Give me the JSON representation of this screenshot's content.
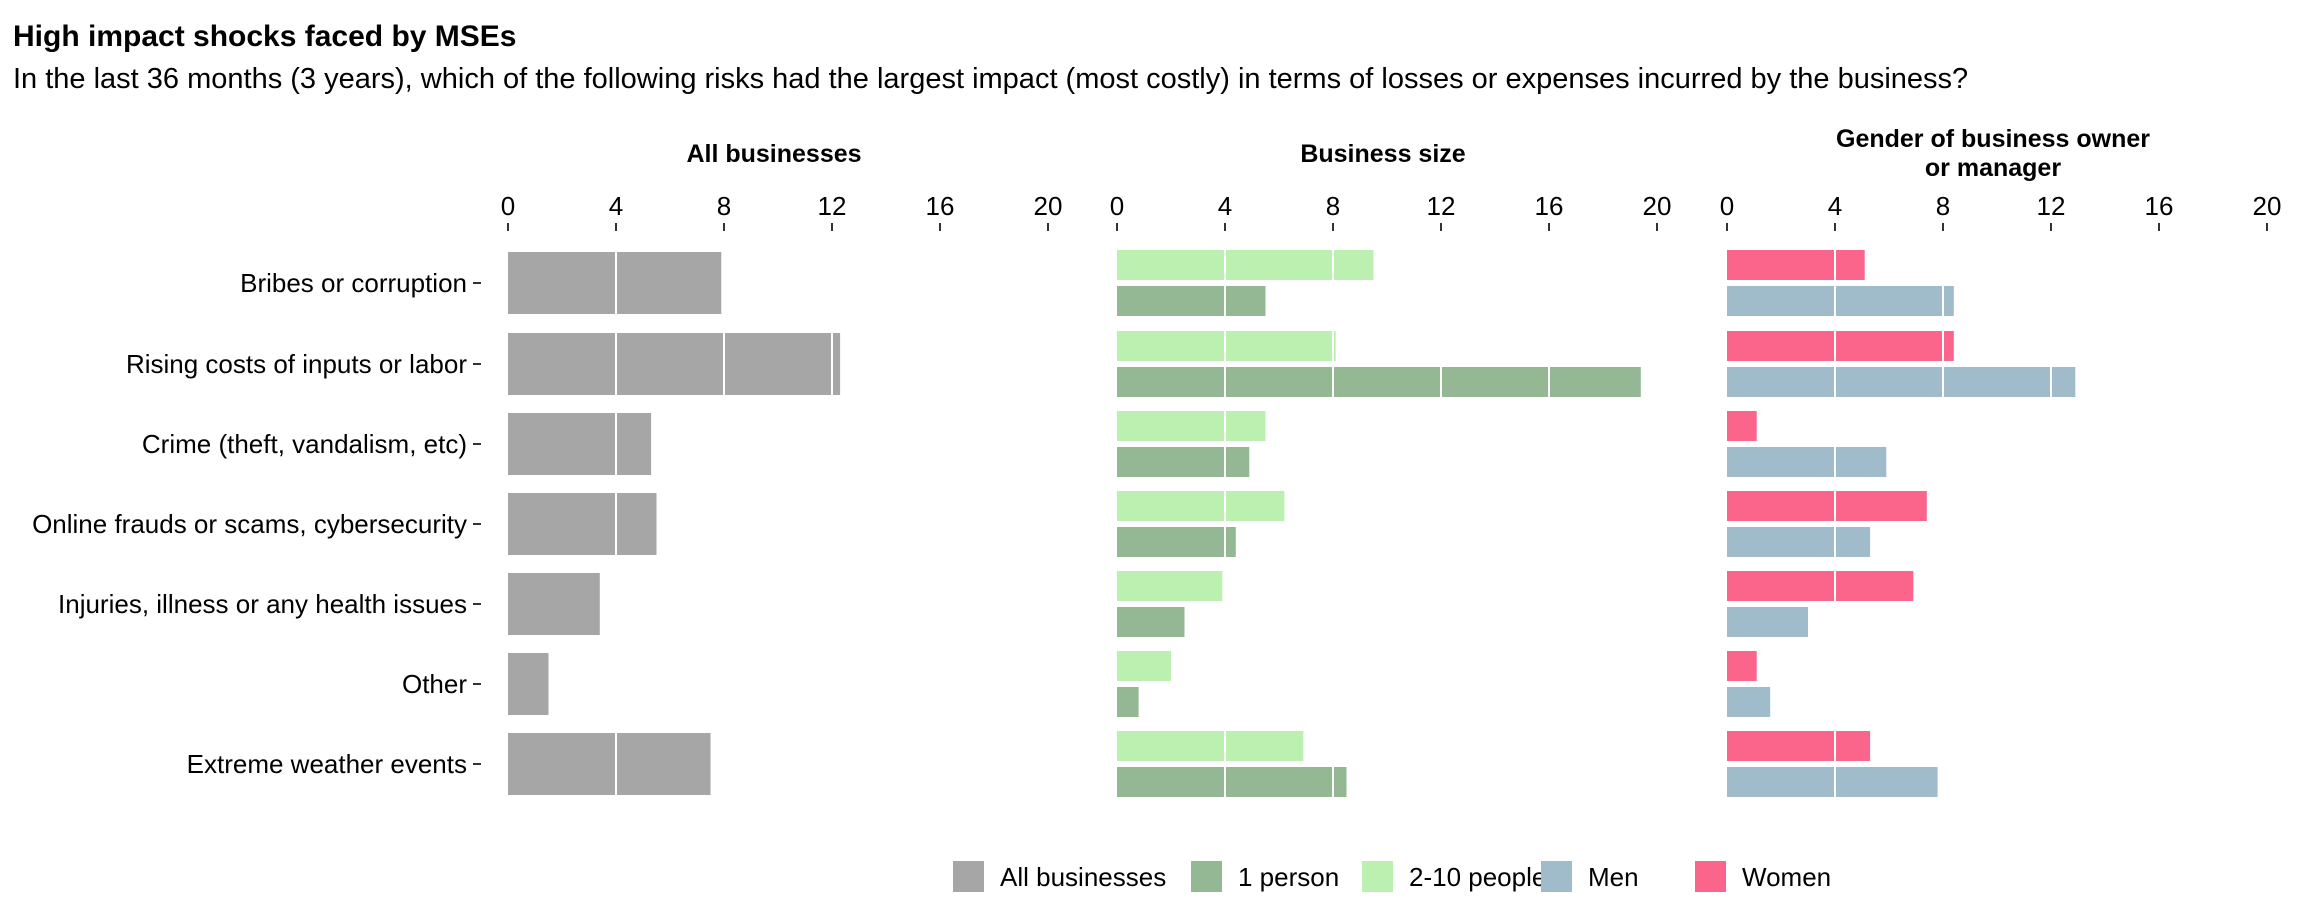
{
  "title": "High impact shocks faced by MSEs",
  "subtitle": "In the last 36 months (3 years), which of the following risks had the largest impact (most costly) in terms of losses or expenses incurred by the business?",
  "chart_data": {
    "type": "bar",
    "orientation": "horizontal",
    "categories": [
      "Bribes or corruption",
      "Rising costs of inputs or labor",
      "Crime (theft, vandalism, etc)",
      "Online frauds or scams, cybersecurity",
      "Injuries, illness or any health issues",
      "Other",
      "Extreme weather events"
    ],
    "xlim": [
      0,
      20
    ],
    "x_ticks": [
      0,
      4,
      8,
      12,
      16,
      20
    ],
    "grid": "white lines over bars at each tick",
    "legend_position": "bottom",
    "colors": {
      "All businesses": "#a6a6a6",
      "1 person": "#93b893",
      "2-10 people": "#bcf0b0",
      "Men": "#a0bccb",
      "Women": "#fb648b"
    },
    "panels": [
      {
        "title": "All businesses",
        "series": [
          {
            "name": "All businesses",
            "values": [
              7.9,
              12.3,
              5.3,
              5.5,
              3.4,
              1.5,
              7.5
            ]
          }
        ]
      },
      {
        "title": "Business size",
        "series": [
          {
            "name": "2-10 people",
            "values": [
              9.5,
              8.1,
              5.5,
              6.2,
              3.9,
              2.0,
              6.9
            ]
          },
          {
            "name": "1 person",
            "values": [
              5.5,
              19.4,
              4.9,
              4.4,
              2.5,
              0.8,
              8.5
            ]
          }
        ]
      },
      {
        "title": "Gender of business owner\nor manager",
        "series": [
          {
            "name": "Women",
            "values": [
              5.1,
              8.4,
              1.1,
              7.4,
              6.9,
              1.1,
              5.3
            ]
          },
          {
            "name": "Men",
            "values": [
              8.4,
              12.9,
              5.9,
              5.3,
              3.0,
              1.6,
              7.8
            ]
          }
        ]
      }
    ],
    "legend": [
      "All businesses",
      "1 person",
      "2-10 people",
      "Men",
      "Women"
    ]
  }
}
